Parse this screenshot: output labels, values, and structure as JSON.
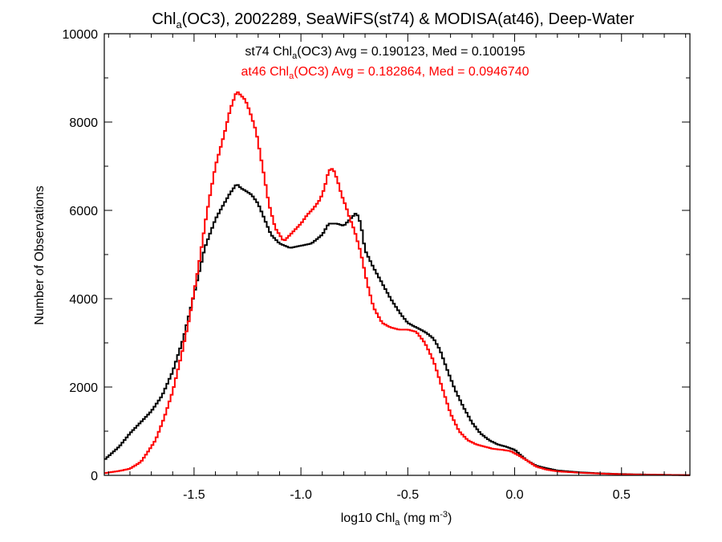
{
  "chart_data": {
    "type": "line",
    "title": {
      "pre": "Chl",
      "sub": "a",
      "post": "(OC3), 2002289, SeaWiFS(st74) & MODISA(at46), Deep-Water"
    },
    "xlabel": {
      "pre": "log10 Chl",
      "sub": "a",
      "mid": " (mg m",
      "sup": "-3",
      "post": ")"
    },
    "ylabel": "Number of Observations",
    "xlim": [
      -1.92,
      0.82
    ],
    "ylim": [
      0,
      10000
    ],
    "x_ticks": [
      -1.5,
      -1.0,
      -0.5,
      0.0,
      0.5
    ],
    "x_tick_labels": [
      "-1.5",
      "-1.0",
      "-0.5",
      "0.0",
      "0.5"
    ],
    "y_ticks": [
      0,
      2000,
      4000,
      6000,
      8000,
      10000
    ],
    "y_tick_labels": [
      "0",
      "2000",
      "4000",
      "6000",
      "8000",
      "10000"
    ],
    "grid": false,
    "legend_position": "top-center",
    "series": [
      {
        "name": "st74",
        "color": "#000000",
        "legend": {
          "pre": "st74 Chl",
          "sub": "a",
          "post": "(OC3) Avg = 0.190123, Med = 0.100195"
        },
        "x": [
          -1.92,
          -1.85,
          -1.8,
          -1.75,
          -1.7,
          -1.65,
          -1.6,
          -1.55,
          -1.5,
          -1.45,
          -1.4,
          -1.36,
          -1.33,
          -1.3,
          -1.28,
          -1.26,
          -1.23,
          -1.2,
          -1.17,
          -1.14,
          -1.1,
          -1.05,
          -1.0,
          -0.95,
          -0.9,
          -0.87,
          -0.83,
          -0.8,
          -0.77,
          -0.74,
          -0.72,
          -0.7,
          -0.66,
          -0.62,
          -0.58,
          -0.54,
          -0.5,
          -0.46,
          -0.42,
          -0.38,
          -0.35,
          -0.32,
          -0.28,
          -0.24,
          -0.2,
          -0.16,
          -0.12,
          -0.08,
          -0.04,
          0.0,
          0.03,
          0.06,
          0.1,
          0.15,
          0.2,
          0.3,
          0.4,
          0.5,
          0.6,
          0.7,
          0.82
        ],
        "y": [
          350,
          650,
          950,
          1200,
          1450,
          1800,
          2350,
          3100,
          4100,
          5150,
          5800,
          6150,
          6400,
          6600,
          6500,
          6450,
          6350,
          6150,
          5800,
          5450,
          5250,
          5150,
          5200,
          5250,
          5450,
          5700,
          5700,
          5650,
          5800,
          5950,
          5700,
          5100,
          4700,
          4350,
          4000,
          3700,
          3450,
          3350,
          3250,
          3100,
          2850,
          2450,
          1950,
          1550,
          1200,
          950,
          800,
          700,
          650,
          580,
          450,
          330,
          220,
          160,
          110,
          70,
          45,
          30,
          20,
          12,
          5
        ]
      },
      {
        "name": "at46",
        "color": "#ff0000",
        "legend": {
          "pre": "at46 Chl",
          "sub": "a",
          "post": "(OC3) Avg = 0.182864, Med = 0.0946740"
        },
        "x": [
          -1.92,
          -1.85,
          -1.8,
          -1.75,
          -1.72,
          -1.68,
          -1.64,
          -1.6,
          -1.56,
          -1.52,
          -1.48,
          -1.44,
          -1.4,
          -1.36,
          -1.33,
          -1.3,
          -1.28,
          -1.26,
          -1.24,
          -1.21,
          -1.18,
          -1.15,
          -1.12,
          -1.08,
          -1.04,
          -1.0,
          -0.97,
          -0.94,
          -0.91,
          -0.89,
          -0.87,
          -0.85,
          -0.83,
          -0.81,
          -0.79,
          -0.77,
          -0.75,
          -0.72,
          -0.69,
          -0.66,
          -0.62,
          -0.58,
          -0.54,
          -0.5,
          -0.46,
          -0.42,
          -0.38,
          -0.34,
          -0.3,
          -0.26,
          -0.22,
          -0.18,
          -0.14,
          -0.1,
          -0.06,
          -0.02,
          0.02,
          0.06,
          0.1,
          0.15,
          0.2,
          0.3,
          0.4,
          0.5,
          0.6,
          0.7,
          0.82
        ],
        "y": [
          50,
          100,
          150,
          300,
          500,
          800,
          1300,
          1900,
          2700,
          3600,
          4700,
          5950,
          7000,
          7700,
          8300,
          8700,
          8600,
          8500,
          8250,
          7800,
          7000,
          6150,
          5600,
          5300,
          5500,
          5700,
          5900,
          6050,
          6250,
          6500,
          6900,
          6950,
          6700,
          6350,
          6100,
          5800,
          5550,
          5050,
          4350,
          3800,
          3450,
          3350,
          3300,
          3300,
          3250,
          3000,
          2600,
          2000,
          1400,
          1000,
          800,
          700,
          650,
          600,
          580,
          550,
          450,
          330,
          200,
          130,
          90,
          60,
          40,
          25,
          15,
          10,
          5
        ]
      }
    ]
  }
}
